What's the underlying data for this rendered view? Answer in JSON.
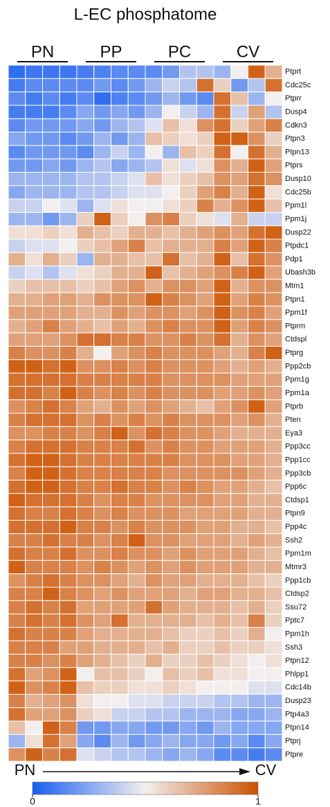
{
  "chart_data": {
    "type": "heatmap",
    "title": "L-EC phosphatome",
    "column_groups": [
      "PN",
      "PP",
      "PC",
      "CV"
    ],
    "axis_start": "PN",
    "axis_end": "CV",
    "rows": [
      "Ptprt",
      "Cdc25c",
      "Ptprr",
      "Dusp4",
      "Cdkn3",
      "Ptpn3",
      "Ptpn13",
      "Ptprs",
      "Dusp10",
      "Cdc25b",
      "Ppm1l",
      "Ppm1j",
      "Dusp22",
      "Ptpdc1",
      "Pdp1",
      "Ubash3b",
      "Mtm1",
      "Ptpn1",
      "Ppm1f",
      "Ptprm",
      "Ctdspl",
      "Ptprg",
      "Ppp2cb",
      "Ppm1g",
      "Ppm1a",
      "Ptprb",
      "Pten",
      "Eya3",
      "Ppp3cc",
      "Ppp1cc",
      "Ppp3cb",
      "Ppp6c",
      "Ctdsp1",
      "Ptpn9",
      "Ppp4c",
      "Ssh2",
      "Ppm1m",
      "Mtmr3",
      "Ppp1cb",
      "Ctdsp2",
      "Ssu72",
      "Pptc7",
      "Ppm1h",
      "Ssh3",
      "Ptpn12",
      "Phlpp1",
      "Cdc14b",
      "Dusp23",
      "Ptp4a3",
      "Ptpn14",
      "Ptprj",
      "Ptpre"
    ],
    "values": [
      [
        0.05,
        0.08,
        0.08,
        0.08,
        0.1,
        0.12,
        0.15,
        0.15,
        0.15,
        0.2,
        0.35,
        0.35,
        0.3,
        0.5,
        0.95,
        0.7
      ],
      [
        0.1,
        0.15,
        0.15,
        0.15,
        0.15,
        0.2,
        0.15,
        0.2,
        0.3,
        0.4,
        0.35,
        0.9,
        0.6,
        0.2,
        0.35,
        0.9
      ],
      [
        0.15,
        0.1,
        0.15,
        0.1,
        0.15,
        0.05,
        0.12,
        0.15,
        0.2,
        0.3,
        0.2,
        0.15,
        0.9,
        0.65,
        0.3,
        0.5
      ],
      [
        0.1,
        0.1,
        0.1,
        0.15,
        0.25,
        0.2,
        0.25,
        0.2,
        0.3,
        0.5,
        0.4,
        0.3,
        0.9,
        0.4,
        0.75,
        0.35
      ],
      [
        0.15,
        0.2,
        0.2,
        0.2,
        0.25,
        0.2,
        0.3,
        0.35,
        0.45,
        0.65,
        0.55,
        0.8,
        0.9,
        0.6,
        0.75,
        0.85
      ],
      [
        0.25,
        0.2,
        0.2,
        0.15,
        0.2,
        0.3,
        0.2,
        0.3,
        0.65,
        0.6,
        0.55,
        0.6,
        0.95,
        0.95,
        0.8,
        0.6
      ],
      [
        0.15,
        0.2,
        0.2,
        0.2,
        0.15,
        0.3,
        0.4,
        0.3,
        0.5,
        0.3,
        0.65,
        0.6,
        0.9,
        0.5,
        0.9,
        0.7
      ],
      [
        0.2,
        0.2,
        0.25,
        0.2,
        0.3,
        0.35,
        0.25,
        0.3,
        0.35,
        0.55,
        0.45,
        0.55,
        0.8,
        0.7,
        0.95,
        0.75
      ],
      [
        0.3,
        0.3,
        0.3,
        0.3,
        0.35,
        0.35,
        0.4,
        0.45,
        0.65,
        0.55,
        0.6,
        0.65,
        0.8,
        0.75,
        0.9,
        0.8
      ],
      [
        0.25,
        0.3,
        0.3,
        0.3,
        0.35,
        0.35,
        0.4,
        0.45,
        0.45,
        0.5,
        0.6,
        0.75,
        0.85,
        0.7,
        0.95,
        0.55
      ],
      [
        0.4,
        0.4,
        0.5,
        0.45,
        0.3,
        0.45,
        0.55,
        0.5,
        0.5,
        0.55,
        0.6,
        0.85,
        0.7,
        0.8,
        0.95,
        0.65
      ],
      [
        0.3,
        0.3,
        0.2,
        0.3,
        0.6,
        0.95,
        0.6,
        0.5,
        0.8,
        0.85,
        0.6,
        0.55,
        0.45,
        0.7,
        0.4,
        0.4
      ],
      [
        0.55,
        0.55,
        0.6,
        0.55,
        0.7,
        0.65,
        0.6,
        0.7,
        0.7,
        0.65,
        0.7,
        0.75,
        0.8,
        0.75,
        0.9,
        0.95
      ],
      [
        0.4,
        0.45,
        0.45,
        0.5,
        0.6,
        0.65,
        0.75,
        0.85,
        0.65,
        0.7,
        0.7,
        0.7,
        0.85,
        0.75,
        0.95,
        0.85
      ],
      [
        0.7,
        0.55,
        0.7,
        0.6,
        0.3,
        0.7,
        0.7,
        0.65,
        0.65,
        0.9,
        0.65,
        0.7,
        0.95,
        0.65,
        0.9,
        0.8
      ],
      [
        0.4,
        0.45,
        0.35,
        0.45,
        0.55,
        0.6,
        0.7,
        0.7,
        0.95,
        0.65,
        0.7,
        0.75,
        0.8,
        0.85,
        0.95,
        0.75
      ],
      [
        0.6,
        0.65,
        0.65,
        0.65,
        0.6,
        0.65,
        0.75,
        0.8,
        0.7,
        0.8,
        0.8,
        0.75,
        0.95,
        0.7,
        0.8,
        0.8
      ],
      [
        0.7,
        0.7,
        0.75,
        0.75,
        0.7,
        0.8,
        0.8,
        0.8,
        0.95,
        0.85,
        0.8,
        0.75,
        0.95,
        0.75,
        0.85,
        0.8
      ],
      [
        0.75,
        0.75,
        0.75,
        0.75,
        0.7,
        0.7,
        0.8,
        0.75,
        0.8,
        0.8,
        0.75,
        0.8,
        0.95,
        0.8,
        0.85,
        0.75
      ],
      [
        0.7,
        0.75,
        0.85,
        0.75,
        0.7,
        0.65,
        0.75,
        0.7,
        0.8,
        0.85,
        0.8,
        0.8,
        0.95,
        0.75,
        0.85,
        0.8
      ],
      [
        0.75,
        0.75,
        0.75,
        0.8,
        0.9,
        0.9,
        0.85,
        0.85,
        0.8,
        0.8,
        0.85,
        0.8,
        0.9,
        0.7,
        0.8,
        0.75
      ],
      [
        0.85,
        0.8,
        0.8,
        0.85,
        0.7,
        0.5,
        0.75,
        0.8,
        0.85,
        0.8,
        0.8,
        0.8,
        0.75,
        0.7,
        0.85,
        0.95
      ],
      [
        0.95,
        0.95,
        0.9,
        0.95,
        0.8,
        0.8,
        0.85,
        0.8,
        0.85,
        0.8,
        0.8,
        0.8,
        0.75,
        0.7,
        0.75,
        0.7
      ],
      [
        0.9,
        0.9,
        0.9,
        0.9,
        0.85,
        0.85,
        0.85,
        0.85,
        0.85,
        0.8,
        0.8,
        0.8,
        0.8,
        0.75,
        0.75,
        0.75
      ],
      [
        0.9,
        0.9,
        0.85,
        0.95,
        0.85,
        0.8,
        0.85,
        0.8,
        0.85,
        0.8,
        0.8,
        0.8,
        0.75,
        0.75,
        0.8,
        0.75
      ],
      [
        0.8,
        0.85,
        0.9,
        0.85,
        0.75,
        0.7,
        0.8,
        0.75,
        0.8,
        0.75,
        0.7,
        0.65,
        0.75,
        0.8,
        0.95,
        0.75
      ],
      [
        0.85,
        0.9,
        0.9,
        0.9,
        0.8,
        0.85,
        0.8,
        0.85,
        0.8,
        0.85,
        0.8,
        0.8,
        0.8,
        0.75,
        0.8,
        0.7
      ],
      [
        0.8,
        0.8,
        0.85,
        0.85,
        0.8,
        0.85,
        0.95,
        0.8,
        0.9,
        0.85,
        0.8,
        0.8,
        0.75,
        0.7,
        0.7,
        0.7
      ],
      [
        0.85,
        0.9,
        0.9,
        0.9,
        0.85,
        0.85,
        0.85,
        0.9,
        0.8,
        0.85,
        0.8,
        0.8,
        0.75,
        0.75,
        0.75,
        0.7
      ],
      [
        0.9,
        0.95,
        0.95,
        0.9,
        0.85,
        0.85,
        0.85,
        0.85,
        0.85,
        0.85,
        0.8,
        0.8,
        0.8,
        0.75,
        0.75,
        0.7
      ],
      [
        0.85,
        0.95,
        0.95,
        0.9,
        0.85,
        0.85,
        0.85,
        0.85,
        0.85,
        0.8,
        0.8,
        0.8,
        0.8,
        0.8,
        0.75,
        0.7
      ],
      [
        0.9,
        0.95,
        0.95,
        0.9,
        0.85,
        0.85,
        0.9,
        0.85,
        0.85,
        0.8,
        0.85,
        0.8,
        0.75,
        0.75,
        0.7,
        0.65
      ],
      [
        0.95,
        0.9,
        0.9,
        0.9,
        0.85,
        0.8,
        0.85,
        0.85,
        0.8,
        0.8,
        0.8,
        0.8,
        0.75,
        0.75,
        0.7,
        0.7
      ],
      [
        0.9,
        0.85,
        0.85,
        0.9,
        0.85,
        0.8,
        0.85,
        0.8,
        0.8,
        0.8,
        0.75,
        0.75,
        0.75,
        0.75,
        0.7,
        0.7
      ],
      [
        0.9,
        0.9,
        0.9,
        0.95,
        0.85,
        0.85,
        0.8,
        0.85,
        0.8,
        0.8,
        0.8,
        0.75,
        0.75,
        0.7,
        0.7,
        0.65
      ],
      [
        0.85,
        0.85,
        0.9,
        0.85,
        0.85,
        0.8,
        0.85,
        0.95,
        0.8,
        0.8,
        0.75,
        0.75,
        0.75,
        0.7,
        0.75,
        0.7
      ],
      [
        0.9,
        0.85,
        0.85,
        0.9,
        0.8,
        0.8,
        0.85,
        0.8,
        0.8,
        0.75,
        0.8,
        0.75,
        0.75,
        0.75,
        0.7,
        0.65
      ],
      [
        0.95,
        0.85,
        0.85,
        0.85,
        0.8,
        0.85,
        0.8,
        0.75,
        0.8,
        0.75,
        0.8,
        0.75,
        0.75,
        0.75,
        0.7,
        0.7
      ],
      [
        0.8,
        0.85,
        0.9,
        0.85,
        0.8,
        0.8,
        0.75,
        0.7,
        0.8,
        0.75,
        0.75,
        0.7,
        0.7,
        0.7,
        0.65,
        0.6
      ],
      [
        0.85,
        0.85,
        0.95,
        0.85,
        0.8,
        0.75,
        0.8,
        0.75,
        0.75,
        0.75,
        0.7,
        0.75,
        0.75,
        0.7,
        0.7,
        0.65
      ],
      [
        0.85,
        0.9,
        0.85,
        0.9,
        0.75,
        0.75,
        0.75,
        0.75,
        0.9,
        0.75,
        0.7,
        0.7,
        0.7,
        0.65,
        0.7,
        0.6
      ],
      [
        0.85,
        0.9,
        0.85,
        0.9,
        0.8,
        0.75,
        0.9,
        0.7,
        0.7,
        0.7,
        0.7,
        0.65,
        0.7,
        0.65,
        0.85,
        0.6
      ],
      [
        0.9,
        0.85,
        0.85,
        0.85,
        0.75,
        0.7,
        0.7,
        0.7,
        0.7,
        0.65,
        0.6,
        0.6,
        0.65,
        0.6,
        0.7,
        0.5
      ],
      [
        0.85,
        0.85,
        0.85,
        0.75,
        0.75,
        0.7,
        0.7,
        0.7,
        0.65,
        0.7,
        0.6,
        0.6,
        0.65,
        0.6,
        0.6,
        0.55
      ],
      [
        0.85,
        0.85,
        0.8,
        0.85,
        0.75,
        0.7,
        0.65,
        0.6,
        0.7,
        0.6,
        0.6,
        0.65,
        0.6,
        0.55,
        0.5,
        0.55
      ],
      [
        0.9,
        0.75,
        0.8,
        0.95,
        0.5,
        0.65,
        0.65,
        0.6,
        0.5,
        0.65,
        0.6,
        0.65,
        0.55,
        0.55,
        0.5,
        0.5
      ],
      [
        0.95,
        0.8,
        0.85,
        0.95,
        0.65,
        0.6,
        0.6,
        0.55,
        0.55,
        0.6,
        0.55,
        0.5,
        0.5,
        0.5,
        0.45,
        0.45
      ],
      [
        0.85,
        0.7,
        0.75,
        0.8,
        0.55,
        0.5,
        0.5,
        0.45,
        0.45,
        0.4,
        0.4,
        0.4,
        0.35,
        0.35,
        0.3,
        0.3
      ],
      [
        0.9,
        0.75,
        0.75,
        0.8,
        0.6,
        0.55,
        0.4,
        0.4,
        0.35,
        0.35,
        0.3,
        0.3,
        0.3,
        0.25,
        0.25,
        0.3
      ],
      [
        0.65,
        0.5,
        0.95,
        0.85,
        0.2,
        0.2,
        0.25,
        0.25,
        0.2,
        0.2,
        0.25,
        0.2,
        0.3,
        0.25,
        0.25,
        0.25
      ],
      [
        0.3,
        0.55,
        0.9,
        0.75,
        0.25,
        0.15,
        0.3,
        0.2,
        0.25,
        0.3,
        0.25,
        0.25,
        0.2,
        0.25,
        0.15,
        0.25
      ],
      [
        0.8,
        0.95,
        0.85,
        0.9,
        0.45,
        0.4,
        0.35,
        0.35,
        0.3,
        0.25,
        0.3,
        0.25,
        0.15,
        0.15,
        0.1,
        0.15
      ]
    ],
    "clim": [
      0,
      1
    ],
    "colorbar_ticks": [
      0,
      1
    ],
    "colormap": [
      "#1a5ff0",
      "#f3efef",
      "#cc5200"
    ]
  }
}
